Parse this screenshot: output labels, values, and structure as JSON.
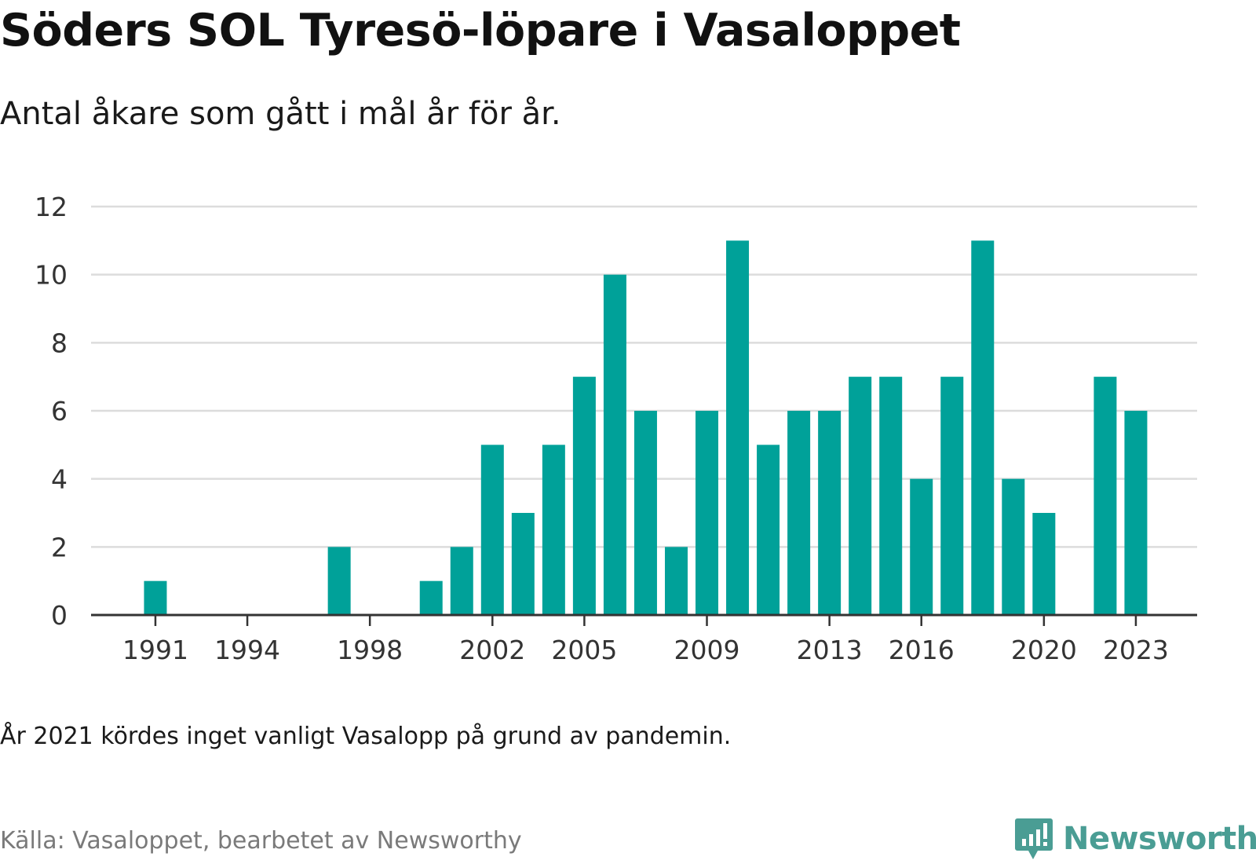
{
  "header": {
    "title": "Söders SOL Tyresö-löpare i Vasaloppet",
    "subtitle": "Antal åkare som gått i mål år för år."
  },
  "chart_data": {
    "type": "bar",
    "title": "Söders SOL Tyresö-löpare i Vasaloppet",
    "subtitle": "Antal åkare som gått i mål år för år.",
    "xlabel": "",
    "ylabel": "",
    "ylim": [
      0,
      12
    ],
    "yticks": [
      0,
      2,
      4,
      6,
      8,
      10,
      12
    ],
    "xlim": [
      1988.9,
      2025
    ],
    "xticks": [
      1991,
      1994,
      1998,
      2002,
      2005,
      2009,
      2013,
      2016,
      2020,
      2023
    ],
    "grid": true,
    "bar_color": "#00a199",
    "x": [
      1991,
      1997,
      2000,
      2001,
      2002,
      2003,
      2004,
      2005,
      2006,
      2007,
      2008,
      2009,
      2010,
      2011,
      2012,
      2013,
      2014,
      2015,
      2016,
      2017,
      2018,
      2019,
      2020,
      2022,
      2023
    ],
    "values": [
      1,
      2,
      1,
      2,
      5,
      3,
      5,
      7,
      10,
      6,
      2,
      6,
      11,
      5,
      6,
      6,
      7,
      7,
      4,
      7,
      11,
      4,
      3,
      7,
      6
    ]
  },
  "footer": {
    "note": "År 2021 kördes inget vanligt Vasalopp på grund av pandemin.",
    "source": "Källa: Vasaloppet, bearbetet av Newsworthy",
    "brand": "Newsworthy",
    "brand_color": "#4a9d94"
  }
}
